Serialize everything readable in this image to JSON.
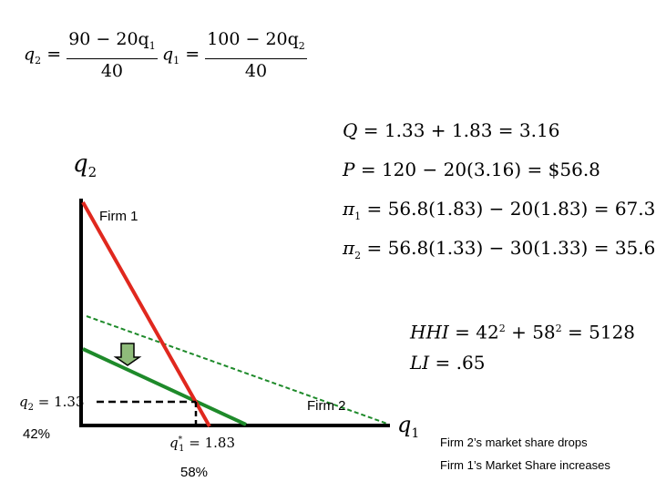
{
  "reaction_functions": {
    "f2": {
      "lhs": "q",
      "lhs_sub": "2",
      "num": "90 − 20q",
      "num_sub": "1",
      "den": "40"
    },
    "f1": {
      "lhs": "q",
      "lhs_sub": "1",
      "num": "100 − 20q",
      "num_sub": "2",
      "den": "40"
    }
  },
  "results": [
    {
      "sym": "Q",
      "sub": "",
      "rhs": "= 1.33 + 1.83 = 3.16"
    },
    {
      "sym": "P",
      "sub": "",
      "rhs": "= 120 − 20(3.16) = $56.8"
    },
    {
      "sym": "π",
      "sub": "1",
      "rhs": "= 56.8(1.83) − 20(1.83) = 67.34"
    },
    {
      "sym": "π",
      "sub": "2",
      "rhs": "= 56.8(1.33) − 30(1.33) = 35.64"
    }
  ],
  "concentration": {
    "hhi": {
      "sym": "HHI",
      "rhs_a": "= 42",
      "exp_a": "2",
      "rhs_b": " + 58",
      "exp_b": "2",
      "rhs_c": " = 5128"
    },
    "li": {
      "sym": "LI",
      "rhs": "= .65"
    }
  },
  "axes": {
    "y_label": "q",
    "y_sub": "2",
    "x_label": "q",
    "x_sub": "1"
  },
  "lines": {
    "firm1_label": "Firm 1",
    "firm2_label": "Firm 2",
    "firm1_color": "#e0281e",
    "firm2_color": "#1e8a2a",
    "firm2_old_color": "#1e8a2a",
    "arrow_color": "#8fbc7a"
  },
  "equilibrium": {
    "q2_label": "q",
    "q2_sub": "2",
    "q2_value": "= 1.33",
    "q1_label": "q",
    "q1_sup": "*",
    "q1_sub": "1",
    "q1_value": "= 1.83"
  },
  "shares": {
    "firm2_share": "42%",
    "firm1_share": "58%",
    "note1": "Firm 2’s market share drops",
    "note2": "Firm 1’s Market Share increases"
  }
}
